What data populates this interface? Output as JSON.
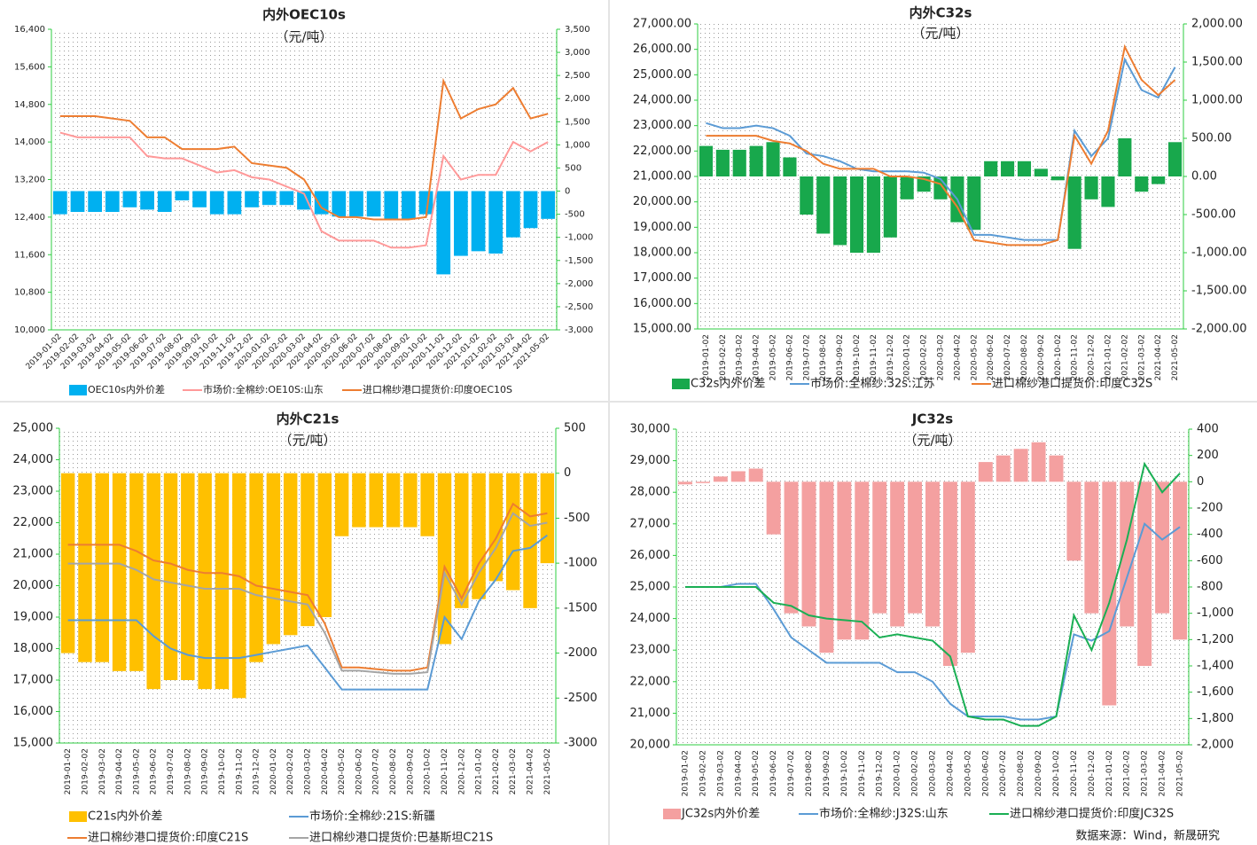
{
  "chart_data": [
    {
      "type": "bar-line",
      "title": "内外OEC10s",
      "subtitle": "（元/吨）",
      "categories": [
        "2019-01-02",
        "2019-02-02",
        "2019-03-02",
        "2019-04-02",
        "2019-05-02",
        "2019-06-02",
        "2019-07-02",
        "2019-08-02",
        "2019-09-02",
        "2019-10-02",
        "2019-11-02",
        "2019-12-02",
        "2020-01-02",
        "2020-02-02",
        "2020-03-02",
        "2020-04-02",
        "2020-05-02",
        "2020-06-02",
        "2020-07-02",
        "2020-08-02",
        "2020-09-02",
        "2020-10-02",
        "2020-11-02",
        "2020-12-02",
        "2021-01-02",
        "2021-02-02",
        "2021-03-02",
        "2021-04-02",
        "2021-05-02"
      ],
      "series": [
        {
          "name": "OEC10s内外价差",
          "color": "#00b0f0",
          "axis": "y2",
          "values": [
            -500,
            -450,
            -450,
            -450,
            -350,
            -400,
            -450,
            -200,
            -350,
            -500,
            -500,
            -350,
            -300,
            -300,
            -400,
            -500,
            -550,
            -550,
            -550,
            -600,
            -600,
            -500,
            -1800,
            -1400,
            -1300,
            -1350,
            -1000,
            -800,
            -600
          ]
        },
        {
          "name": "市场价:全棉纱:OE10S:山东",
          "color": "#ff9999",
          "values": [
            14200,
            14100,
            14100,
            14100,
            14100,
            13700,
            13650,
            13650,
            13500,
            13350,
            13400,
            13250,
            13200,
            13050,
            12900,
            12100,
            11900,
            11900,
            11900,
            11750,
            11750,
            11800,
            13700,
            13200,
            13300,
            13300,
            14000,
            13800,
            14000
          ]
        },
        {
          "name": "进口棉纱港口提货价:印度OEC10S",
          "color": "#ed7d31",
          "values": [
            14550,
            14550,
            14550,
            14500,
            14450,
            14100,
            14100,
            13850,
            13850,
            13850,
            13900,
            13550,
            13500,
            13450,
            13200,
            12600,
            12400,
            12400,
            12350,
            12350,
            12350,
            12400,
            15300,
            14500,
            14700,
            14800,
            15150,
            14500,
            14600
          ]
        }
      ],
      "ylim": [
        10000,
        16400
      ],
      "yticks": [
        {
          "value": 10000,
          "label": "10,000"
        },
        {
          "value": 10800,
          "label": "10,800"
        },
        {
          "value": 11600,
          "label": "11,600"
        },
        {
          "value": 12400,
          "label": "12,400"
        },
        {
          "value": 13200,
          "label": "13,200"
        },
        {
          "value": 14000,
          "label": "14,000"
        },
        {
          "value": 14800,
          "label": "14,800"
        },
        {
          "value": 15600,
          "label": "15,600"
        },
        {
          "value": 16400,
          "label": "16,400"
        }
      ],
      "y2lim": [
        -3000,
        3500
      ],
      "y2ticks": [
        {
          "value": -3000,
          "label": "-3,000"
        },
        {
          "value": -2500,
          "label": "-2,500"
        },
        {
          "value": -2000,
          "label": "-2,000"
        },
        {
          "value": -1500,
          "label": "-1,500"
        },
        {
          "value": -1000,
          "label": "-1,000"
        },
        -500,
        0,
        500,
        {
          "value": 1000,
          "label": "1,000"
        },
        {
          "value": 1500,
          "label": "1,500"
        },
        {
          "value": 2000,
          "label": "2,000"
        },
        {
          "value": 2500,
          "label": "2,500"
        },
        {
          "value": 3000,
          "label": "3,000"
        },
        {
          "value": 3500,
          "label": "3,500"
        }
      ]
    },
    {
      "type": "bar-line",
      "title": "内外C32s",
      "subtitle": "（元/吨）",
      "categories": [
        "2019-01-02",
        "2019-02-02",
        "2019-03-02",
        "2019-04-02",
        "2019-05-02",
        "2019-06-02",
        "2019-07-02",
        "2019-08-02",
        "2019-09-02",
        "2019-10-02",
        "2019-11-02",
        "2019-12-02",
        "2020-01-02",
        "2020-02-02",
        "2020-03-02",
        "2020-04-02",
        "2020-05-02",
        "2020-06-02",
        "2020-07-02",
        "2020-08-02",
        "2020-09-02",
        "2020-10-02",
        "2020-11-02",
        "2020-12-02",
        "2021-01-02",
        "2021-02-02",
        "2021-03-02",
        "2021-04-02",
        "2021-05-02"
      ],
      "series": [
        {
          "name": "C32s内外价差",
          "color": "#18a84c",
          "axis": "y2",
          "values": [
            400,
            350,
            350,
            400,
            450,
            250,
            -500,
            -750,
            -900,
            -1000,
            -1000,
            -800,
            -300,
            -200,
            -300,
            -600,
            -700,
            200,
            200,
            200,
            100,
            -50,
            -950,
            -300,
            -400,
            500,
            -200,
            -100,
            450
          ]
        },
        {
          "name": "市场价:全棉纱:32s:江苏",
          "color": "#5b9bd5",
          "values": [
            23100,
            22900,
            22900,
            23000,
            22900,
            22600,
            21900,
            21800,
            21600,
            21300,
            21200,
            21200,
            21200,
            21150,
            20900,
            20100,
            18700,
            18700,
            18600,
            18500,
            18500,
            18500,
            22800,
            21800,
            22500,
            25600,
            24400,
            24100,
            25300
          ]
        },
        {
          "name": "进口棉纱港口提货价:印度C32S",
          "color": "#ed7d31",
          "values": [
            22600,
            22600,
            22600,
            22600,
            22400,
            22300,
            22000,
            21500,
            21300,
            21300,
            21300,
            21000,
            21000,
            20900,
            20700,
            19800,
            18500,
            18400,
            18300,
            18300,
            18300,
            18500,
            22600,
            21500,
            22800,
            26100,
            24800,
            24200,
            24800
          ]
        }
      ],
      "ylim": [
        15000,
        27000
      ],
      "yticks": [
        {
          "value": 15000,
          "label": "15,000.00"
        },
        {
          "value": 16000,
          "label": "16,000.00"
        },
        {
          "value": 17000,
          "label": "17,000.00"
        },
        {
          "value": 18000,
          "label": "18,000.00"
        },
        {
          "value": 19000,
          "label": "19,000.00"
        },
        {
          "value": 20000,
          "label": "20,000.00"
        },
        {
          "value": 21000,
          "label": "21,000.00"
        },
        {
          "value": 22000,
          "label": "22,000.00"
        },
        {
          "value": 23000,
          "label": "23,000.00"
        },
        {
          "value": 24000,
          "label": "24,000.00"
        },
        {
          "value": 25000,
          "label": "25,000.00"
        },
        {
          "value": 26000,
          "label": "26,000.00"
        },
        {
          "value": 27000,
          "label": "27,000.00"
        }
      ],
      "y2lim": [
        -2000,
        2000
      ],
      "y2ticks": [
        {
          "value": -2000,
          "label": "-2,000.00"
        },
        {
          "value": -1500,
          "label": "-1,500.00"
        },
        {
          "value": -1000,
          "label": "-1,000.00"
        },
        {
          "value": -500,
          "label": "-500.00"
        },
        {
          "value": 0,
          "label": "0.00"
        },
        {
          "value": 500,
          "label": "500.00"
        },
        {
          "value": 1000,
          "label": "1,000.00"
        },
        {
          "value": 1500,
          "label": "1,500.00"
        },
        {
          "value": 2000,
          "label": "2,000.00"
        }
      ]
    },
    {
      "type": "bar-line",
      "title": "内外C21s",
      "subtitle": "（元/吨）",
      "categories": [
        "2019-01-02",
        "2019-02-02",
        "2019-03-02",
        "2019-04-02",
        "2019-05-02",
        "2019-06-02",
        "2019-07-02",
        "2019-08-02",
        "2019-09-02",
        "2019-10-02",
        "2019-11-02",
        "2019-12-02",
        "2020-01-02",
        "2020-02-02",
        "2020-03-02",
        "2020-04-02",
        "2020-05-02",
        "2020-06-02",
        "2020-07-02",
        "2020-08-02",
        "2020-09-02",
        "2020-10-02",
        "2020-11-02",
        "2020-12-02",
        "2021-01-02",
        "2021-02-02",
        "2021-03-02",
        "2021-04-02",
        "2021-05-02"
      ],
      "series": [
        {
          "name": "C21s内外价差",
          "color": "#ffc000",
          "axis": "y2",
          "values": [
            -2000,
            -2100,
            -2100,
            -2200,
            -2200,
            -2400,
            -2300,
            -2300,
            -2400,
            -2400,
            -2500,
            -2100,
            -1900,
            -1800,
            -1700,
            -1600,
            -700,
            -600,
            -600,
            -600,
            -600,
            -700,
            -1900,
            -1500,
            -1400,
            -1200,
            -1300,
            -1500,
            -1000
          ]
        },
        {
          "name": "市场价:全棉纱:21S:新疆",
          "color": "#5b9bd5",
          "values": [
            18900,
            18900,
            18900,
            18900,
            18900,
            18400,
            18000,
            17800,
            17700,
            17700,
            17700,
            17800,
            17900,
            18000,
            18100,
            17400,
            16700,
            16700,
            16700,
            16700,
            16700,
            16700,
            19000,
            18300,
            19500,
            20200,
            21100,
            21200,
            21600
          ]
        },
        {
          "name": "进口棉纱港口提货价:印度C21S",
          "color": "#ed7d31",
          "values": [
            21300,
            21300,
            21300,
            21300,
            21100,
            20800,
            20700,
            20500,
            20400,
            20400,
            20300,
            20000,
            19900,
            19800,
            19700,
            18800,
            17400,
            17400,
            17350,
            17300,
            17300,
            17400,
            20600,
            19600,
            20700,
            21500,
            22600,
            22200,
            22300
          ]
        },
        {
          "name": "进口棉纱港口提货价:巴基斯坦C21S",
          "color": "#a5a5a5",
          "values": [
            20700,
            20700,
            20700,
            20700,
            20500,
            20200,
            20100,
            20000,
            19900,
            19900,
            19900,
            19700,
            19600,
            19500,
            19400,
            18500,
            17300,
            17300,
            17250,
            17200,
            17200,
            17250,
            20400,
            19400,
            20400,
            21200,
            22300,
            21900,
            22000
          ]
        }
      ],
      "ylim": [
        15000,
        25000
      ],
      "yticks": [
        {
          "value": 15000,
          "label": "15,000"
        },
        {
          "value": 16000,
          "label": "16,000"
        },
        {
          "value": 17000,
          "label": "17,000"
        },
        {
          "value": 18000,
          "label": "18,000"
        },
        {
          "value": 19000,
          "label": "19,000"
        },
        {
          "value": 20000,
          "label": "20,000"
        },
        {
          "value": 21000,
          "label": "21,000"
        },
        {
          "value": 22000,
          "label": "22,000"
        },
        {
          "value": 23000,
          "label": "23,000"
        },
        {
          "value": 24000,
          "label": "24,000"
        },
        {
          "value": 25000,
          "label": "25,000"
        }
      ],
      "y2lim": [
        -3000,
        500
      ],
      "y2ticks": [
        -3000,
        -2500,
        -2000,
        -1500,
        -1000,
        -500,
        0,
        500
      ]
    },
    {
      "type": "bar-line",
      "title": "JC32s",
      "subtitle": "（元/吨）",
      "categories": [
        "2019-01-02",
        "2019-02-02",
        "2019-03-02",
        "2019-04-02",
        "2019-05-02",
        "2019-06-02",
        "2019-07-02",
        "2019-08-02",
        "2019-09-02",
        "2019-10-02",
        "2019-11-02",
        "2019-12-02",
        "2020-01-02",
        "2020-02-02",
        "2020-03-02",
        "2020-04-02",
        "2020-05-02",
        "2020-06-02",
        "2020-07-02",
        "2020-08-02",
        "2020-09-02",
        "2020-10-02",
        "2020-11-02",
        "2020-12-02",
        "2021-01-02",
        "2021-02-02",
        "2021-03-02",
        "2021-04-02",
        "2021-05-02"
      ],
      "series": [
        {
          "name": "JC32s内外价差",
          "color": "#f4a0a0",
          "axis": "y2",
          "values": [
            -20,
            -10,
            40,
            80,
            100,
            -400,
            -1000,
            -1100,
            -1300,
            -1200,
            -1200,
            -1000,
            -1100,
            -1000,
            -1100,
            -1400,
            -1300,
            150,
            200,
            250,
            300,
            200,
            -600,
            -1000,
            -1700,
            -1100,
            -1400,
            -1000,
            -1200
          ]
        },
        {
          "name": "市场价:全棉纱:J32S:山东",
          "color": "#5b9bd5",
          "values": [
            25000,
            25000,
            25000,
            25100,
            25100,
            24300,
            23400,
            23000,
            22600,
            22600,
            22600,
            22600,
            22300,
            22300,
            22000,
            21300,
            20900,
            20900,
            20900,
            20800,
            20800,
            20900,
            23500,
            23300,
            23600,
            25300,
            27000,
            26500,
            26900
          ]
        },
        {
          "name": "进口棉纱港口提货价:印度JC32S",
          "color": "#1aaf54",
          "values": [
            25000,
            25000,
            25000,
            25000,
            25000,
            24500,
            24400,
            24100,
            24000,
            23950,
            23900,
            23400,
            23500,
            23400,
            23300,
            22800,
            20900,
            20800,
            20800,
            20600,
            20600,
            20900,
            24100,
            23000,
            24500,
            26500,
            28900,
            28000,
            28600
          ]
        }
      ],
      "ylim": [
        20000,
        30000
      ],
      "yticks": [
        {
          "value": 20000,
          "label": "20,000"
        },
        {
          "value": 21000,
          "label": "21,000"
        },
        {
          "value": 22000,
          "label": "22,000"
        },
        {
          "value": 23000,
          "label": "23,000"
        },
        {
          "value": 24000,
          "label": "24,000"
        },
        {
          "value": 25000,
          "label": "25,000"
        },
        {
          "value": 26000,
          "label": "26,000"
        },
        {
          "value": 27000,
          "label": "27,000"
        },
        {
          "value": 28000,
          "label": "28,000"
        },
        {
          "value": 29000,
          "label": "29,000"
        },
        {
          "value": 30000,
          "label": "30,000"
        }
      ],
      "y2lim": [
        -2000,
        400
      ],
      "y2ticks": [
        {
          "value": -2000,
          "label": "-2,000"
        },
        {
          "value": -1800,
          "label": "-1,800"
        },
        {
          "value": -1600,
          "label": "-1,600"
        },
        {
          "value": -1400,
          "label": "-1,400"
        },
        {
          "value": -1200,
          "label": "-1,200"
        },
        {
          "value": -1000,
          "label": "-1,000"
        },
        -800,
        -600,
        -400,
        -200,
        0,
        200,
        400
      ]
    }
  ],
  "footer": {
    "source": "数据来源：Wind，新晟研究"
  }
}
